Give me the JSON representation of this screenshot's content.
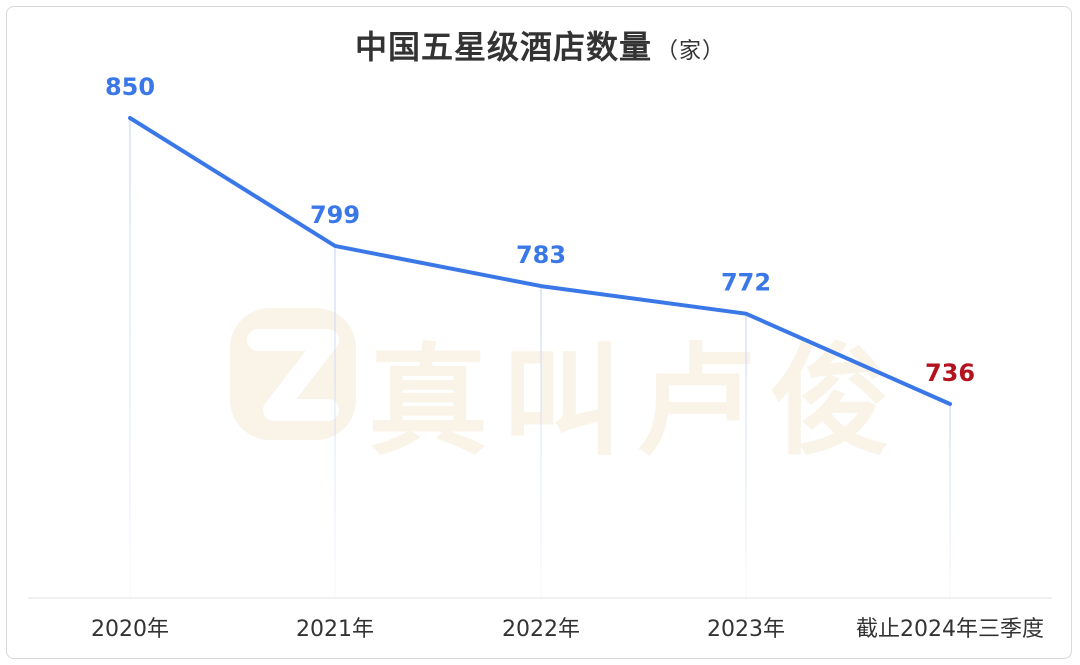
{
  "chart_data": {
    "type": "line",
    "title": "中国五星级酒店数量",
    "unit": "（家）",
    "categories": [
      "2020年",
      "2021年",
      "2022年",
      "2023年",
      "截止2024年三季度"
    ],
    "series": [
      {
        "values": [
          850,
          799,
          783,
          772,
          736
        ]
      }
    ],
    "data_labels": [
      "850",
      "799",
      "783",
      "772",
      "736"
    ],
    "ylim": [
      660,
      880
    ],
    "grid": false,
    "colors": {
      "line": "#3b78e7",
      "label": "#3b78e7",
      "highlight_label": "#b3121e",
      "axis_text": "#333333",
      "baseline": "#e3e3e3",
      "drop_line": "#c9d9f5"
    }
  },
  "watermark": {
    "text": "真叫卢俊",
    "logo_color": "#f6ead6",
    "icon": "z-logo-icon"
  }
}
